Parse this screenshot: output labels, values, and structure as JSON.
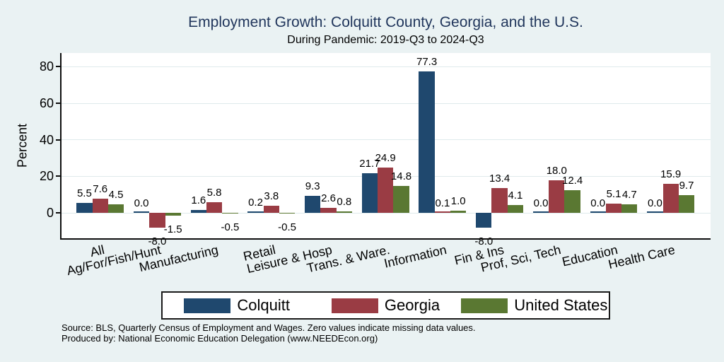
{
  "title": "Employment Growth: Colquitt County, Georgia, and the U.S.",
  "subtitle": "During Pandemic: 2019-Q3 to 2024-Q3",
  "footer": {
    "source_line": "Source: BLS, Quarterly Census of Employment and Wages. Zero values indicate missing data values.",
    "producer_line": "Produced by: National Economic Education Delegation (www.NEEDEcon.org)"
  },
  "colors": {
    "background": "#eaf2f3",
    "plot_background": "#ffffff",
    "title_text": "#21365c",
    "gridline": "#dfeaec",
    "colquitt": "#1f486e",
    "georgia": "#9a3c44",
    "united_states": "#5a7832"
  },
  "chart_data": {
    "type": "bar",
    "title": "Employment Growth: Colquitt County, Georgia, and the U.S.",
    "subtitle": "During Pandemic: 2019-Q3 to 2024-Q3",
    "xlabel": "",
    "ylabel": "Percent",
    "yticks": [
      0,
      20,
      40,
      60,
      80
    ],
    "ylim": [
      -14.3,
      87.1
    ],
    "grid": true,
    "legend_position": "bottom",
    "bar_label_format": "one_decimal",
    "zero_note": "Zero values indicate missing data values",
    "categories": [
      "All",
      "Ag/For/Fish/Hunt",
      "Manufacturing",
      "Retail",
      "Leisure & Hosp",
      "Trans. & Ware.",
      "Information",
      "Fin & Ins",
      "Prof, Sci, Tech",
      "Education",
      "Health Care"
    ],
    "series": [
      {
        "name": "Colquitt",
        "color": "#1f486e",
        "values": [
          5.5,
          0.0,
          1.6,
          0.2,
          9.3,
          21.7,
          77.3,
          -8.0,
          0.0,
          0.0,
          0.0
        ]
      },
      {
        "name": "Georgia",
        "color": "#9a3c44",
        "values": [
          7.6,
          -8.0,
          5.8,
          3.8,
          2.6,
          24.9,
          0.1,
          13.4,
          18.0,
          5.1,
          15.9
        ]
      },
      {
        "name": "United States",
        "color": "#5a7832",
        "values": [
          4.5,
          -1.5,
          -0.5,
          -0.5,
          0.8,
          14.8,
          1.0,
          4.1,
          12.4,
          4.7,
          9.7
        ]
      }
    ]
  }
}
